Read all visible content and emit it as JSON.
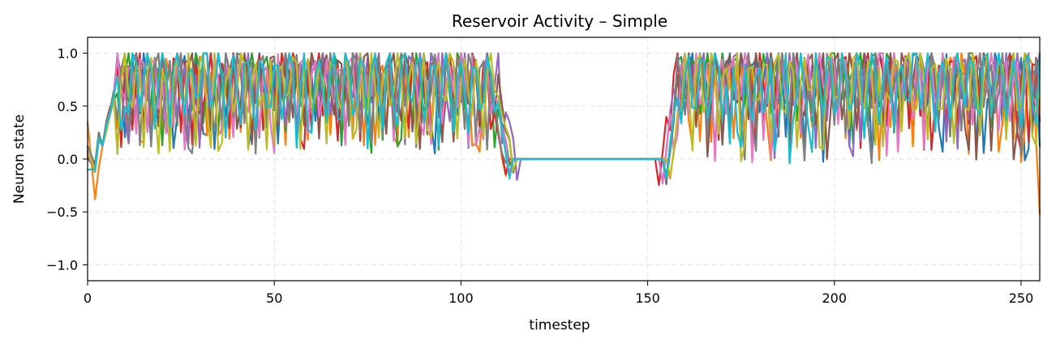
{
  "chart_data": {
    "type": "line",
    "title": "Reservoir Activity – Simple",
    "xlabel": "timestep",
    "ylabel": "Neuron state",
    "xlim": [
      0,
      255
    ],
    "ylim": [
      -1.15,
      1.15
    ],
    "xticks": [
      0,
      50,
      100,
      150,
      200,
      250
    ],
    "xtick_labels": [
      "0",
      "50",
      "100",
      "150",
      "200",
      "250"
    ],
    "yticks": [
      -1.0,
      -0.5,
      0.0,
      0.5,
      1.0
    ],
    "ytick_labels": [
      "−1.0",
      "−0.5",
      "0.0",
      "0.5",
      "1.0"
    ],
    "grid": true,
    "legend": "none",
    "colors": [
      "#1f77b4",
      "#ff7f0e",
      "#2ca02c",
      "#d62728",
      "#9467bd",
      "#8c564b",
      "#e377c2",
      "#7f7f7f",
      "#bcbd22",
      "#17becf"
    ],
    "series_params": [
      {
        "seed": 11,
        "period": 3.4,
        "phase": 0.0,
        "quiet_start": 114,
        "quiet_end": 155,
        "start_dip": -0.12,
        "start_val": 0.05
      },
      {
        "seed": 23,
        "period": 3.0,
        "phase": 1.1,
        "quiet_start": 113,
        "quiet_end": 156,
        "start_dip": -0.38,
        "start_val": 0.35
      },
      {
        "seed": 37,
        "period": 3.7,
        "phase": 2.2,
        "quiet_start": 114,
        "quiet_end": 155,
        "start_dip": -0.05,
        "start_val": 0.12
      },
      {
        "seed": 41,
        "period": 3.2,
        "phase": 0.7,
        "quiet_start": 113,
        "quiet_end": 153,
        "start_dip": -0.1,
        "start_val": 0.02
      },
      {
        "seed": 53,
        "period": 2.9,
        "phase": 1.9,
        "quiet_start": 116,
        "quiet_end": 154,
        "start_dip": -0.08,
        "start_val": 0.0
      },
      {
        "seed": 61,
        "period": 3.6,
        "phase": 2.8,
        "quiet_start": 115,
        "quiet_end": 155,
        "start_dip": -0.06,
        "start_val": 0.08
      },
      {
        "seed": 71,
        "period": 3.3,
        "phase": 0.4,
        "quiet_start": 114,
        "quiet_end": 154,
        "start_dip": -0.09,
        "start_val": 0.1
      },
      {
        "seed": 83,
        "period": 3.1,
        "phase": 1.5,
        "quiet_start": 113,
        "quiet_end": 155,
        "start_dip": -0.07,
        "start_val": 0.04
      },
      {
        "seed": 97,
        "period": 3.5,
        "phase": 2.5,
        "quiet_start": 115,
        "quiet_end": 156,
        "start_dip": -0.11,
        "start_val": 0.06
      },
      {
        "seed": 103,
        "period": 3.8,
        "phase": 0.9,
        "quiet_start": 114,
        "quiet_end": 155,
        "start_dip": -0.1,
        "start_val": -0.1
      }
    ]
  }
}
